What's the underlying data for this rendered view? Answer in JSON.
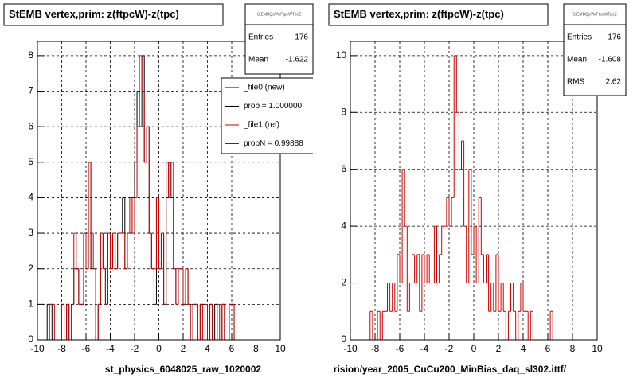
{
  "chart_data": [
    {
      "type": "histogram",
      "title": "StEMB  vertex,prim: z(ftpcW)-z(tpc)",
      "caption": "st_physics_6048025_raw_1020002",
      "stats_title": "StEMBQaVtxFtpcWTpcZ",
      "stats": [
        {
          "label": "Entries",
          "value": 176
        },
        {
          "label": "Mean",
          "value": -1.622
        }
      ],
      "legend": [
        "_file0 (new)",
        "prob = 1.000000",
        "_file1 (ref)",
        "probN = 0.99888"
      ],
      "legend_colors": [
        "#000000",
        "#000000",
        "#cc0000",
        "#cc0000"
      ],
      "grid": true,
      "xlim": [
        -10,
        10
      ],
      "xticks": [
        -10,
        -8,
        -6,
        -4,
        -2,
        0,
        2,
        4,
        6,
        8,
        10
      ],
      "ylim": [
        0,
        8.4
      ],
      "yticks": [
        0,
        1,
        2,
        3,
        4,
        5,
        6,
        7,
        8
      ],
      "bins": [
        -10,
        -9.8,
        -9.6,
        -9.4,
        -9.2,
        -9,
        -8.8,
        -8.6,
        -8.4,
        -8.2,
        -8,
        -7.8,
        -7.6,
        -7.4,
        -7.2,
        -7,
        -6.8,
        -6.6,
        -6.4,
        -6.2,
        -6,
        -5.8,
        -5.6,
        -5.4,
        -5.2,
        -5,
        -4.8,
        -4.6,
        -4.4,
        -4.2,
        -4,
        -3.8,
        -3.6,
        -3.4,
        -3.2,
        -3,
        -2.8,
        -2.6,
        -2.4,
        -2.2,
        -2,
        -1.8,
        -1.6,
        -1.4,
        -1.2,
        -1,
        -0.8,
        -0.6,
        -0.4,
        -0.2,
        0,
        0.2,
        0.4,
        0.6,
        0.8,
        1,
        1.2,
        1.4,
        1.6,
        1.8,
        2,
        2.2,
        2.4,
        2.6,
        2.8,
        3,
        3.2,
        3.4,
        3.6,
        3.8,
        4,
        4.2,
        4.4,
        4.6,
        4.8,
        5,
        5.2,
        5.4,
        5.6,
        5.8,
        6,
        6.2,
        6.4,
        6.6,
        6.8,
        7,
        7.2,
        7.4,
        7.6,
        7.8,
        8,
        8.2,
        8.4,
        8.6,
        8.8,
        9,
        9.2,
        9.4,
        9.6,
        9.8,
        10
      ],
      "series": [
        {
          "name": "_file0 (new)",
          "color": "#000000",
          "values": [
            0,
            0,
            0,
            0,
            1,
            1,
            0,
            0,
            0,
            0,
            1,
            0,
            1,
            0,
            1,
            2,
            2,
            1,
            1,
            3,
            2,
            5,
            2,
            2,
            0,
            1,
            3,
            2,
            1,
            3,
            2,
            3,
            2,
            3,
            3,
            4,
            2,
            3,
            3,
            4,
            5,
            7,
            6,
            8,
            5,
            6,
            3,
            2,
            1,
            4,
            2,
            3,
            1,
            4,
            5,
            4,
            2,
            1,
            2,
            2,
            1,
            2,
            1,
            0,
            1,
            1,
            0,
            1,
            1,
            0,
            0,
            1,
            0,
            1,
            0,
            0,
            1,
            0,
            0,
            1,
            1,
            0,
            0,
            0,
            0,
            0,
            0,
            0,
            0,
            0,
            0,
            0,
            0,
            0,
            0,
            0,
            0,
            0,
            0,
            0
          ]
        },
        {
          "name": "_file1 (ref)",
          "color": "#cc0000",
          "values": [
            0,
            0,
            0,
            0,
            0,
            1,
            1,
            0,
            0,
            0,
            1,
            0,
            1,
            0,
            1,
            3,
            2,
            1,
            1,
            3,
            2,
            5,
            3,
            2,
            0,
            1,
            3,
            2,
            1,
            3,
            2,
            3,
            2,
            3,
            3,
            3,
            2,
            3,
            4,
            3,
            4,
            6,
            8,
            7,
            5,
            6,
            3,
            2,
            2,
            4,
            2,
            3,
            1,
            5,
            4,
            5,
            2,
            1,
            2,
            2,
            1,
            2,
            1,
            0,
            1,
            1,
            0,
            1,
            0,
            1,
            0,
            1,
            0,
            0,
            1,
            0,
            1,
            0,
            0,
            1,
            1,
            0,
            0,
            0,
            0,
            0,
            0,
            0,
            0,
            0,
            0,
            0,
            0,
            0,
            0,
            0,
            0,
            0,
            0,
            0
          ]
        }
      ]
    },
    {
      "type": "histogram",
      "title": "StEMB  vertex,prim: z(ftpcW)-z(tpc)",
      "caption": "rision/year_2005_CuCu200_MinBias_daq_sl302.ittf/",
      "stats_title": "StEMBQaVtxFtpcWTpcZ",
      "stats": [
        {
          "label": "Entries",
          "value": 176
        },
        {
          "label": "Mean",
          "value": -1.608
        },
        {
          "label": "RMS",
          "value": 2.62
        }
      ],
      "grid": true,
      "xlim": [
        -10,
        10
      ],
      "xticks": [
        -10,
        -8,
        -6,
        -4,
        -2,
        0,
        2,
        4,
        6,
        8,
        10
      ],
      "ylim": [
        0,
        10.5
      ],
      "yticks": [
        0,
        2,
        4,
        6,
        8,
        10
      ],
      "bins": [
        -10,
        -9.8,
        -9.6,
        -9.4,
        -9.2,
        -9,
        -8.8,
        -8.6,
        -8.4,
        -8.2,
        -8,
        -7.8,
        -7.6,
        -7.4,
        -7.2,
        -7,
        -6.8,
        -6.6,
        -6.4,
        -6.2,
        -6,
        -5.8,
        -5.6,
        -5.4,
        -5.2,
        -5,
        -4.8,
        -4.6,
        -4.4,
        -4.2,
        -4,
        -3.8,
        -3.6,
        -3.4,
        -3.2,
        -3,
        -2.8,
        -2.6,
        -2.4,
        -2.2,
        -2,
        -1.8,
        -1.6,
        -1.4,
        -1.2,
        -1,
        -0.8,
        -0.6,
        -0.4,
        -0.2,
        0,
        0.2,
        0.4,
        0.6,
        0.8,
        1,
        1.2,
        1.4,
        1.6,
        1.8,
        2,
        2.2,
        2.4,
        2.6,
        2.8,
        3,
        3.2,
        3.4,
        3.6,
        3.8,
        4,
        4.2,
        4.4,
        4.6,
        4.8,
        5,
        5.2,
        5.4,
        5.6,
        5.8,
        6,
        6.2,
        6.4,
        6.6,
        6.8,
        7,
        7.2,
        7.4,
        7.6,
        7.8,
        8,
        8.2,
        8.4,
        8.6,
        8.8,
        9,
        9.2,
        9.4,
        9.6,
        9.8,
        10
      ],
      "series": [
        {
          "name": "_file1 (ref)",
          "color": "#cc0000",
          "values": [
            0,
            0,
            0,
            0,
            0,
            0,
            0,
            0,
            1,
            0,
            0,
            1,
            0,
            1,
            1,
            2,
            1,
            2,
            1,
            3,
            2,
            6,
            4,
            1,
            2,
            3,
            2,
            3,
            1,
            3,
            2,
            3,
            2,
            2,
            4,
            2,
            3,
            4,
            4,
            5,
            4,
            5,
            10,
            8,
            6,
            7,
            4,
            2,
            6,
            3,
            4,
            2,
            5,
            3,
            2,
            3,
            1,
            2,
            1,
            3,
            1,
            2,
            1,
            0,
            1,
            2,
            1,
            0,
            1,
            2,
            1,
            1,
            0,
            1,
            0,
            0,
            0,
            0,
            0,
            0,
            0,
            1,
            0,
            0,
            0,
            0,
            0,
            0,
            0,
            0,
            0,
            0,
            0,
            0,
            0,
            0,
            0,
            0,
            0,
            0
          ]
        }
      ]
    }
  ]
}
